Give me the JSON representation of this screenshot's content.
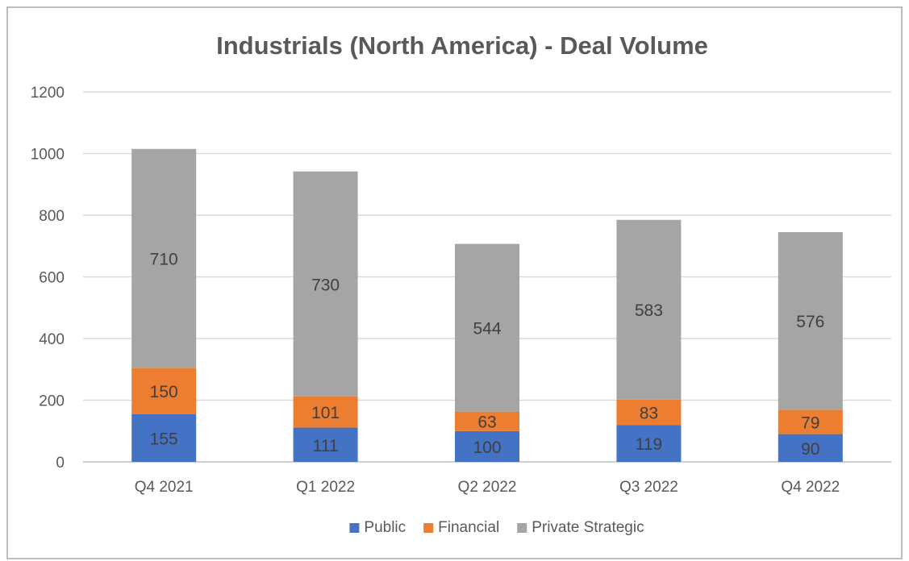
{
  "chart_data": {
    "type": "bar",
    "stacked": true,
    "title": "Industrials (North America) - Deal Volume",
    "xlabel": "",
    "ylabel": "",
    "categories": [
      "Q4 2021",
      "Q1 2022",
      "Q2 2022",
      "Q3 2022",
      "Q4 2022"
    ],
    "ylim": [
      0,
      1200
    ],
    "yticks": [
      0,
      200,
      400,
      600,
      800,
      1000,
      1200
    ],
    "grid": true,
    "legend_position": "bottom",
    "series": [
      {
        "name": "Public",
        "color": "#4472c4",
        "values": [
          155,
          111,
          100,
          119,
          90
        ]
      },
      {
        "name": "Financial",
        "color": "#ed7d31",
        "values": [
          150,
          101,
          63,
          83,
          79
        ]
      },
      {
        "name": "Private Strategic",
        "color": "#a5a5a5",
        "values": [
          710,
          730,
          544,
          583,
          576
        ]
      }
    ]
  }
}
